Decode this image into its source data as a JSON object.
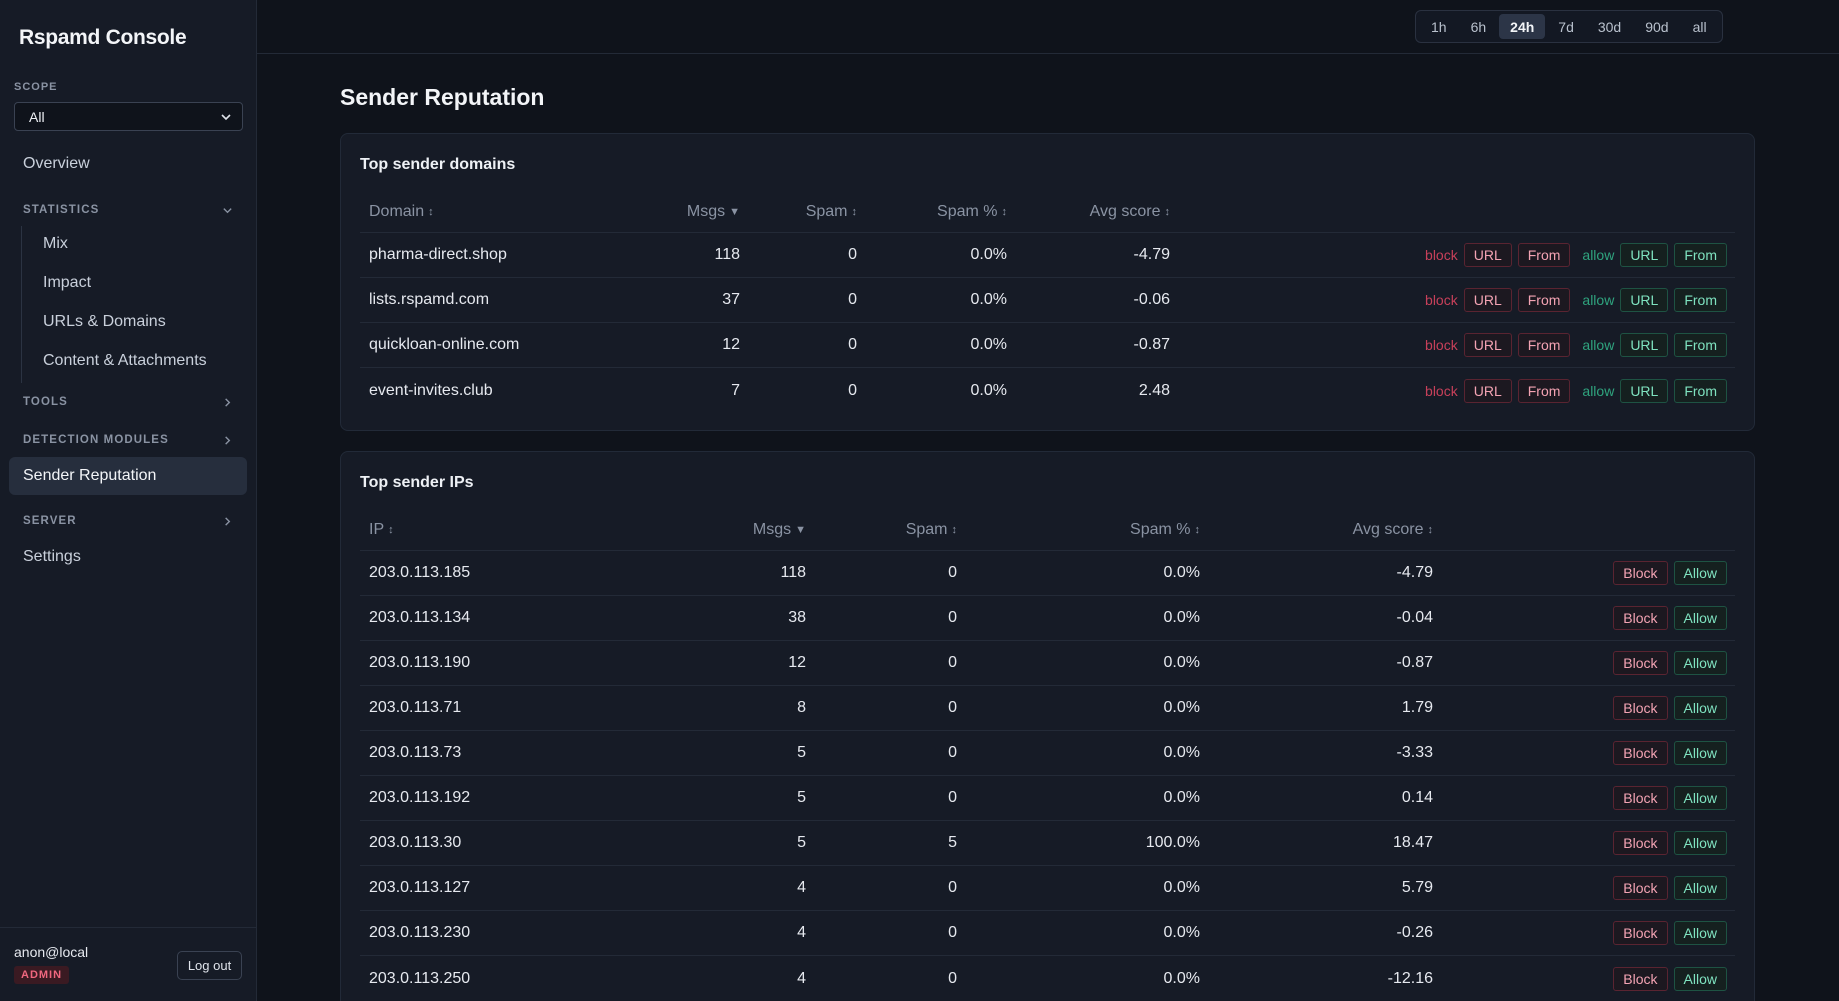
{
  "app": {
    "title": "Rspamd Console"
  },
  "scope": {
    "label": "SCOPE",
    "value": "All"
  },
  "nav": {
    "overview": "Overview",
    "statistics": {
      "label": "STATISTICS",
      "items": [
        "Mix",
        "Impact",
        "URLs & Domains",
        "Content & Attachments"
      ]
    },
    "tools": "TOOLS",
    "detection_modules": "DETECTION MODULES",
    "sender_reputation": "Sender Reputation",
    "server": "SERVER",
    "settings": "Settings"
  },
  "user": {
    "name": "anon@local",
    "role": "ADMIN",
    "logout": "Log out"
  },
  "time_range": {
    "options": [
      "1h",
      "6h",
      "24h",
      "7d",
      "30d",
      "90d",
      "all"
    ],
    "selected": "24h"
  },
  "page": {
    "title": "Sender Reputation"
  },
  "domains": {
    "title": "Top sender domains",
    "columns": {
      "domain": "Domain",
      "msgs": "Msgs",
      "spam": "Spam",
      "spam_pct": "Spam %",
      "avg_score": "Avg score"
    },
    "sort_icons": {
      "domain": "↕",
      "msgs": "▼",
      "spam": "↕",
      "spam_pct": "↕",
      "avg_score": "↕"
    },
    "action_labels": {
      "block": "block",
      "allow": "allow",
      "url": "URL",
      "from": "From"
    },
    "rows": [
      {
        "domain": "pharma-direct.shop",
        "msgs": "118",
        "spam": "0",
        "spam_pct": "0.0%",
        "avg_score": "-4.79"
      },
      {
        "domain": "lists.rspamd.com",
        "msgs": "37",
        "spam": "0",
        "spam_pct": "0.0%",
        "avg_score": "-0.06"
      },
      {
        "domain": "quickloan-online.com",
        "msgs": "12",
        "spam": "0",
        "spam_pct": "0.0%",
        "avg_score": "-0.87"
      },
      {
        "domain": "event-invites.club",
        "msgs": "7",
        "spam": "0",
        "spam_pct": "0.0%",
        "avg_score": "2.48"
      }
    ]
  },
  "ips": {
    "title": "Top sender IPs",
    "columns": {
      "ip": "IP",
      "msgs": "Msgs",
      "spam": "Spam",
      "spam_pct": "Spam %",
      "avg_score": "Avg score"
    },
    "sort_icons": {
      "ip": "↕",
      "msgs": "▼",
      "spam": "↕",
      "spam_pct": "↕",
      "avg_score": "↕"
    },
    "action_labels": {
      "block": "Block",
      "allow": "Allow"
    },
    "rows": [
      {
        "ip": "203.0.113.185",
        "msgs": "118",
        "spam": "0",
        "spam_pct": "0.0%",
        "avg_score": "-4.79"
      },
      {
        "ip": "203.0.113.134",
        "msgs": "38",
        "spam": "0",
        "spam_pct": "0.0%",
        "avg_score": "-0.04"
      },
      {
        "ip": "203.0.113.190",
        "msgs": "12",
        "spam": "0",
        "spam_pct": "0.0%",
        "avg_score": "-0.87"
      },
      {
        "ip": "203.0.113.71",
        "msgs": "8",
        "spam": "0",
        "spam_pct": "0.0%",
        "avg_score": "1.79"
      },
      {
        "ip": "203.0.113.73",
        "msgs": "5",
        "spam": "0",
        "spam_pct": "0.0%",
        "avg_score": "-3.33"
      },
      {
        "ip": "203.0.113.192",
        "msgs": "5",
        "spam": "0",
        "spam_pct": "0.0%",
        "avg_score": "0.14"
      },
      {
        "ip": "203.0.113.30",
        "msgs": "5",
        "spam": "5",
        "spam_pct": "100.0%",
        "avg_score": "18.47"
      },
      {
        "ip": "203.0.113.127",
        "msgs": "4",
        "spam": "0",
        "spam_pct": "0.0%",
        "avg_score": "5.79"
      },
      {
        "ip": "203.0.113.230",
        "msgs": "4",
        "spam": "0",
        "spam_pct": "0.0%",
        "avg_score": "-0.26"
      },
      {
        "ip": "203.0.113.250",
        "msgs": "4",
        "spam": "0",
        "spam_pct": "0.0%",
        "avg_score": "-12.16"
      }
    ]
  },
  "colors": {
    "background": "#0f131b",
    "sidebar": "#161b26",
    "block": "#c7405a",
    "allow": "#2fa37e"
  }
}
